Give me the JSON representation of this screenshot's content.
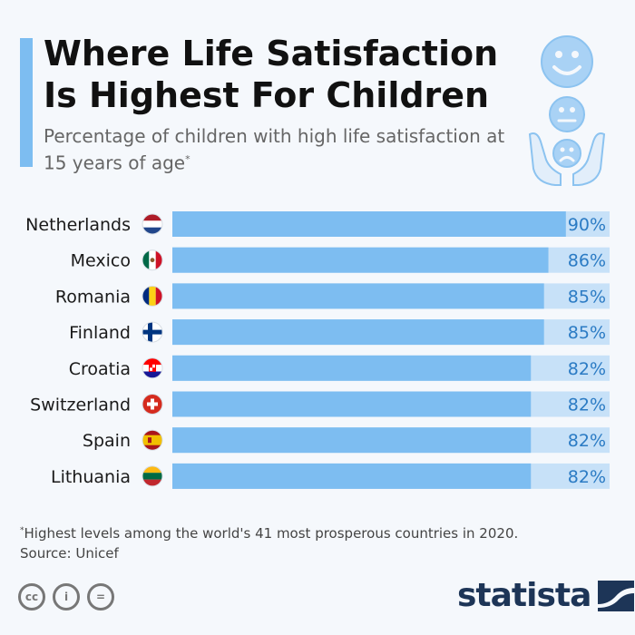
{
  "header": {
    "title": "Where Life Satisfaction Is Highest For Children",
    "subtitle": "Percentage of children with high life satisfaction at 15 years of age",
    "subtitle_marker": "*"
  },
  "chart_data": {
    "type": "bar",
    "orientation": "horizontal",
    "categories": [
      "Netherlands",
      "Mexico",
      "Romania",
      "Finland",
      "Croatia",
      "Switzerland",
      "Spain",
      "Lithuania"
    ],
    "values": [
      90,
      86,
      85,
      85,
      82,
      82,
      82,
      82
    ],
    "value_labels": [
      "90%",
      "86%",
      "85%",
      "85%",
      "82%",
      "82%",
      "82%",
      "82%"
    ],
    "xlim": [
      0,
      100
    ],
    "grid": false,
    "bar_color": "#7dbdf1",
    "track_color": "#c7e1f8",
    "label_color": "#2b7bc4"
  },
  "footer": {
    "footnote_marker": "*",
    "footnote": "Highest levels among the world's 41 most prosperous countries in 2020.",
    "source": "Source: Unicef",
    "license_icons": [
      "cc-icon",
      "attribution-icon",
      "no-derivatives-icon"
    ],
    "license_glyphs": [
      "cc",
      "i",
      "="
    ],
    "brand": "statista"
  },
  "colors": {
    "accent": "#7dbdf1",
    "brand": "#1d3557"
  }
}
